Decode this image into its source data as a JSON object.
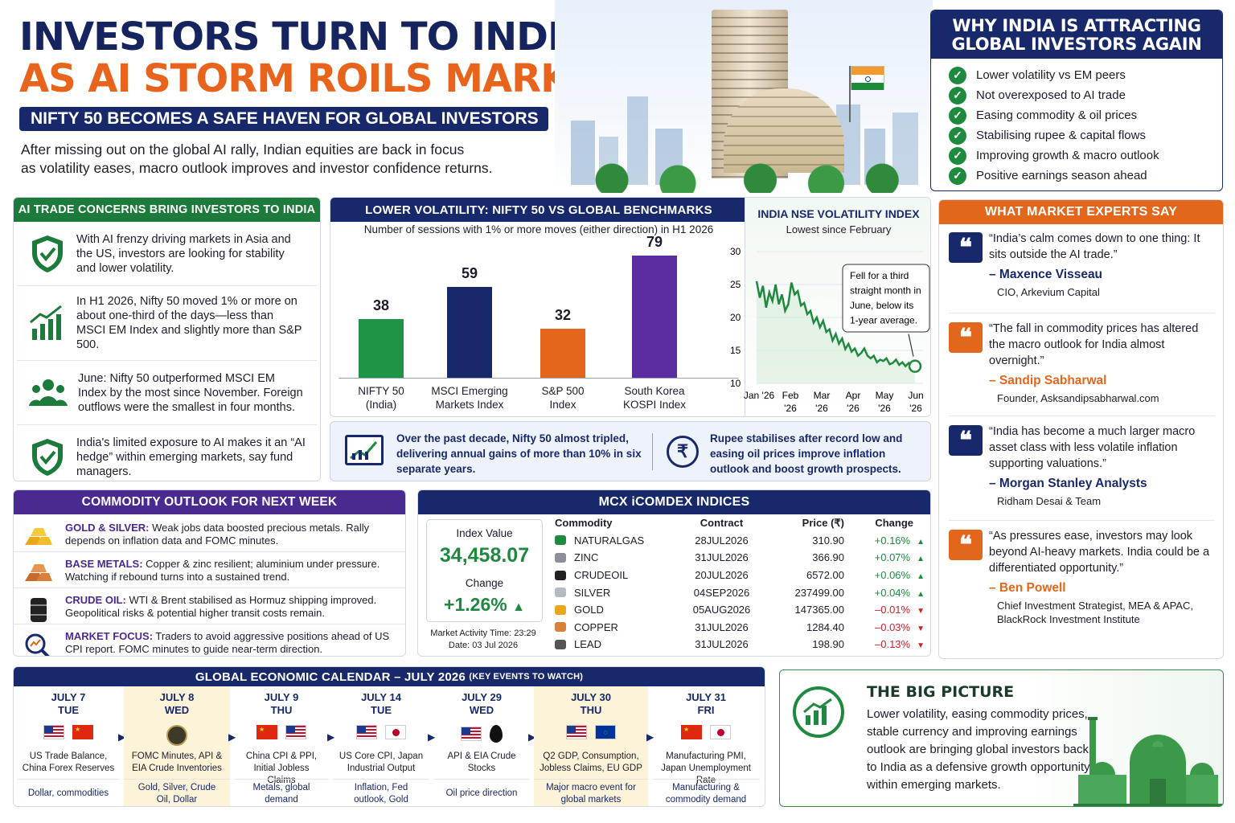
{
  "header": {
    "title_line1": "INVESTORS TURN TO INDIA",
    "title_line2": "AS AI STORM ROILS MARKETS",
    "subtitle": "NIFTY 50 BECOMES A SAFE HAVEN FOR GLOBAL INVESTORS",
    "intro_line1": "After missing out on the global AI rally, Indian equities are back in focus",
    "intro_line2": "as volatility eases, macro outlook improves and investor confidence returns."
  },
  "why_india": {
    "title_line1": "WHY INDIA IS ATTRACTING",
    "title_line2": "GLOBAL INVESTORS AGAIN",
    "items": [
      "Lower volatility vs EM peers",
      "Not overexposed to AI trade",
      "Easing commodity & oil prices",
      "Stabilising rupee & capital flows",
      "Improving growth & macro outlook",
      "Positive earnings season ahead"
    ]
  },
  "ai_trade": {
    "title": "AI TRADE CONCERNS BRING INVESTORS TO INDIA",
    "items": [
      {
        "icon": "shield-check-icon",
        "text": "With AI frenzy driving markets in Asia and the US, investors are looking for stability and lower volatility."
      },
      {
        "icon": "growth-chart-icon",
        "text": "In H1 2026, Nifty 50 moved 1% or more on about one-third of the days—less than MSCI EM Index and slightly more than S&P 500."
      },
      {
        "icon": "people-icon",
        "text": "June: Nifty 50 outperformed MSCI EM Index by the most since November. Foreign outflows were the smallest in four months."
      },
      {
        "icon": "shield-check-icon",
        "text": "India's limited exposure to AI makes it an “AI hedge” within emerging markets, say fund managers."
      }
    ]
  },
  "volatility": {
    "title": "LOWER VOLATILITY: NIFTY 50 VS GLOBAL BENCHMARKS",
    "subtitle": "Number of sessions with 1% or more moves (either direction) in H1 2026"
  },
  "chart_data": [
    {
      "type": "bar",
      "categories": [
        "NIFTY 50 (India)",
        "MSCI Emerging Markets Index",
        "S&P 500 Index",
        "South Korea KOSPI Index"
      ],
      "category_lines": [
        [
          "NIFTY 50",
          "(India)"
        ],
        [
          "MSCI Emerging",
          "Markets Index"
        ],
        [
          "S&P 500",
          "Index"
        ],
        [
          "South Korea",
          "KOSPI Index"
        ]
      ],
      "values": [
        38,
        59,
        32,
        79
      ],
      "value_labels": [
        "38",
        "59",
        "32",
        "79"
      ],
      "colors": [
        "#1f9447",
        "#18296b",
        "#e3661c",
        "#5b2d9e"
      ],
      "ylim": [
        0,
        85
      ]
    },
    {
      "type": "line",
      "title": "INDIA NSE VOLATILITY INDEX",
      "subtitle": "Lowest since February",
      "x_ticks": [
        [
          "Jan '26"
        ],
        [
          "Feb",
          "'26"
        ],
        [
          "Mar",
          "'26"
        ],
        [
          "Apr",
          "'26"
        ],
        [
          "May",
          "'26"
        ],
        [
          "Jun",
          "'26"
        ]
      ],
      "y_ticks": [
        "30",
        "25",
        "20",
        "15",
        "10"
      ],
      "ylim": [
        10,
        30
      ],
      "series": [
        {
          "values": [
            25.5,
            23,
            24.8,
            21.5,
            23.8,
            22.5,
            25,
            22,
            23.5,
            21,
            22,
            25.3,
            23.5,
            24,
            21.8,
            22.2,
            20.5,
            21,
            19.2,
            20,
            18.5,
            19.5,
            17.8,
            18.2,
            16.5,
            17.5,
            16,
            16.8,
            15.2,
            16,
            14.8,
            15.3,
            14.2,
            14.6,
            15.3,
            14.2,
            13.8,
            14.2,
            13.2,
            13.6,
            13.4,
            13.8,
            12.9,
            13.1,
            13.6,
            12.8,
            13.2,
            12.6,
            13.1,
            12.4,
            12.6
          ]
        }
      ],
      "annotation": "Fell for a third straight month in June, below its 1-year average.",
      "annotation_lines": [
        "Fell for a third",
        "straight month in",
        "June, below its",
        "1-year average."
      ],
      "color": "#1f8a3f"
    }
  ],
  "facts": {
    "decade": "Over the past decade, Nifty 50 almost tripled, delivering annual gains of more than 10% in six separate years.",
    "rupee": "Rupee stabilises after record low and easing oil prices improve inflation outlook and boost growth prospects."
  },
  "experts": {
    "title": "WHAT MARKET EXPERTS SAY",
    "quotes": [
      {
        "text": "“India’s calm comes down to one thing: It sits outside the AI trade.”",
        "name": "– Maxence Visseau",
        "role": "CIO, Arkevium Capital",
        "color": "#18296b"
      },
      {
        "text": "“The fall in commodity prices has altered the macro outlook for India almost overnight.”",
        "name": "– Sandip Sabharwal",
        "role": "Founder, Asksandipsabharwal.com",
        "color": "#e2661b"
      },
      {
        "text": "“India has become a much larger macro asset class with less volatile inflation supporting valuations.”",
        "name": "– Morgan Stanley Analysts",
        "role": "Ridham Desai & Team",
        "color": "#18296b"
      },
      {
        "text": "“As pressures ease, investors may look beyond AI-heavy markets. India could be a differentiated opportunity.”",
        "name": "– Ben Powell",
        "role": "Chief Investment Strategist, MEA & APAC, BlackRock Investment Institute",
        "color": "#e2661b"
      }
    ]
  },
  "commodity": {
    "title": "COMMODITY OUTLOOK FOR NEXT WEEK",
    "items": [
      {
        "icon": "gold-bars-icon",
        "label": "GOLD & SILVER:",
        "text": " Weak jobs data boosted precious metals. Rally depends on inflation data and FOMC minutes."
      },
      {
        "icon": "metal-ingots-icon",
        "label": "BASE METALS:",
        "text": " Copper & zinc resilient; aluminium under pressure. Watching if rebound turns into a sustained trend."
      },
      {
        "icon": "oil-barrel-icon",
        "label": "CRUDE OIL:",
        "text": " WTI & Brent stabilised as Hormuz shipping improved. Geopolitical risks & potential higher transit costs remain."
      },
      {
        "icon": "magnifier-icon",
        "label": "MARKET FOCUS:",
        "text": " Traders to avoid aggressive positions ahead of US CPI report. FOMC minutes to guide near-term direction."
      }
    ]
  },
  "mcx": {
    "title": "MCX iCOMDEX INDICES",
    "index_label": "Index Value",
    "index_value": "34,458.07",
    "change_label": "Change",
    "change_value": "+1.26%",
    "activity_time": "Market Activity Time: 23:29",
    "activity_date": "Date: 03 Jul 2026",
    "columns": [
      "Commodity",
      "Contract",
      "Price (₹)",
      "Change"
    ],
    "rows": [
      {
        "name": "NATURALGAS",
        "contract": "28JUL2026",
        "price": "310.90",
        "change": "+0.16%",
        "dir": "up"
      },
      {
        "name": "ZINC",
        "contract": "31JUL2026",
        "price": "366.90",
        "change": "+0.07%",
        "dir": "up"
      },
      {
        "name": "CRUDEOIL",
        "contract": "20JUL2026",
        "price": "6572.00",
        "change": "+0.06%",
        "dir": "up"
      },
      {
        "name": "SILVER",
        "contract": "04SEP2026",
        "price": "237499.00",
        "change": "+0.04%",
        "dir": "up"
      },
      {
        "name": "GOLD",
        "contract": "05AUG2026",
        "price": "147365.00",
        "change": "–0.01%",
        "dir": "down"
      },
      {
        "name": "COPPER",
        "contract": "31JUL2026",
        "price": "1284.40",
        "change": "–0.03%",
        "dir": "down"
      },
      {
        "name": "LEAD",
        "contract": "31JUL2026",
        "price": "198.90",
        "change": "–0.13%",
        "dir": "down"
      }
    ]
  },
  "calendar": {
    "title": "GLOBAL ECONOMIC CALENDAR – JULY 2026",
    "title_note": "(KEY EVENTS TO WATCH)",
    "days": [
      {
        "date": "JULY 7",
        "dow": "TUE",
        "flags": [
          "US",
          "CN"
        ],
        "event": "US Trade Balance, China Forex Reserves",
        "impact": "Dollar, commodities",
        "hl": false
      },
      {
        "date": "JULY 8",
        "dow": "WED",
        "flags": [
          "FED"
        ],
        "event": "FOMC Minutes, API & EIA Crude Inventories",
        "impact": "Gold, Silver, Crude Oil, Dollar",
        "hl": true
      },
      {
        "date": "JULY 9",
        "dow": "THU",
        "flags": [
          "CN",
          "US"
        ],
        "event": "China CPI & PPI, Initial Jobless Claims",
        "impact": "Metals, global demand",
        "hl": false
      },
      {
        "date": "JULY 14",
        "dow": "TUE",
        "flags": [
          "US",
          "JP"
        ],
        "event": "US Core CPI, Japan Industrial Output",
        "impact": "Inflation, Fed outlook, Gold",
        "hl": false
      },
      {
        "date": "JULY 29",
        "dow": "WED",
        "flags": [
          "US",
          "OIL"
        ],
        "event": "API & EIA Crude Stocks",
        "impact": "Oil price direction",
        "hl": false
      },
      {
        "date": "JULY 30",
        "dow": "THU",
        "flags": [
          "US",
          "EU"
        ],
        "event": "Q2 GDP, Consumption, Jobless Claims, EU GDP",
        "impact": "Major macro event for global markets",
        "hl": true
      },
      {
        "date": "JULY 31",
        "dow": "FRI",
        "flags": [
          "CN",
          "JP"
        ],
        "event": "Manufacturing PMI, Japan Unemployment Rate",
        "impact": "Manufacturing & commodity demand",
        "hl": false
      }
    ]
  },
  "big_picture": {
    "title": "THE BIG PICTURE",
    "text": "Lower volatility, easing commodity prices, stable currency and improving earnings outlook are bringing global investors back to India as a defensive growth opportunity within emerging markets."
  }
}
